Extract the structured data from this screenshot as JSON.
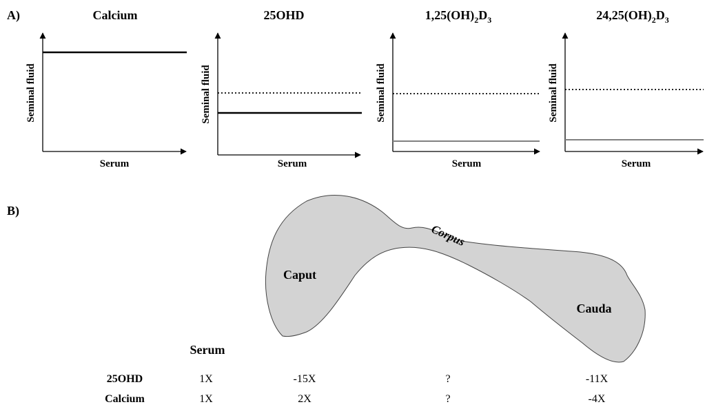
{
  "panel_a": {
    "label": "A)",
    "ylabel": "Seminal fluid",
    "xlabel": "Serum",
    "plots": [
      {
        "title": "Calcium"
      },
      {
        "title": "25OHD"
      },
      {
        "title_main": "1,25(OH)",
        "title_sub": "2",
        "title_suffix": "D",
        "title_sub2": "3"
      },
      {
        "title_main": "24,25(OH)",
        "title_sub": "2",
        "title_suffix": "D",
        "title_sub2": "3"
      }
    ]
  },
  "panel_b": {
    "label": "B)",
    "regions": {
      "caput": "Caput",
      "corpus": "Corpus",
      "cauda": "Cauda"
    },
    "table": {
      "header": "Serum",
      "rows": [
        {
          "label": "25OHD",
          "values": [
            "1X",
            "-15X",
            "?",
            "-11X"
          ]
        },
        {
          "label": "Calcium",
          "values": [
            "1X",
            "2X",
            "?",
            "-4X"
          ]
        }
      ]
    }
  },
  "colors": {
    "epididymis_fill": "#d3d3d3",
    "line": "#000000",
    "gray_line": "#808080"
  }
}
